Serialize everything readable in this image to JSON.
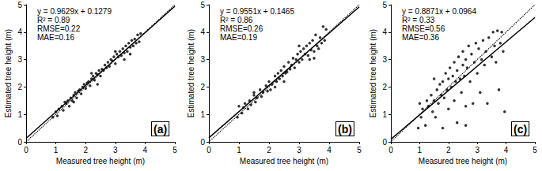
{
  "chart_data": [
    {
      "type": "scatter",
      "title": "(a)",
      "x_label": "Measured tree height (m)",
      "y_label": "Estimated tree height (m)",
      "annotations": [
        "y = 0.9629x + 0.1279",
        "R² = 0.89",
        "RMSE=0.22",
        "MAE=0.16"
      ],
      "xlim": [
        0,
        5
      ],
      "xticks": [
        0,
        1,
        2,
        3,
        4,
        5
      ],
      "ylim": [
        0,
        5
      ],
      "yticks": [
        0,
        1,
        2,
        3,
        4,
        5
      ],
      "grid": false,
      "series": [
        {
          "type": "scatter",
          "marker": "circle",
          "color": "#000000",
          "x": [
            0.9,
            1.0,
            1.05,
            1.1,
            1.2,
            1.25,
            1.3,
            1.35,
            1.4,
            1.45,
            1.5,
            1.55,
            1.6,
            1.65,
            1.7,
            1.75,
            1.8,
            1.85,
            1.9,
            1.95,
            2.0,
            2.05,
            2.1,
            2.15,
            2.2,
            2.25,
            2.3,
            2.35,
            2.4,
            2.45,
            2.5,
            2.55,
            2.6,
            2.65,
            2.7,
            2.75,
            2.8,
            2.85,
            2.9,
            2.95,
            3.0,
            3.05,
            3.1,
            3.15,
            3.2,
            3.25,
            3.3,
            3.35,
            3.4,
            3.45,
            3.5,
            3.55,
            3.6,
            3.65,
            3.7,
            3.75,
            3.8,
            3.85,
            3.5,
            2.4,
            1.6,
            3.0,
            2.2,
            3.3
          ],
          "values": [
            0.9,
            1.1,
            0.95,
            1.2,
            1.3,
            1.15,
            1.45,
            1.4,
            1.5,
            1.3,
            1.6,
            1.5,
            1.7,
            1.8,
            1.6,
            1.85,
            1.9,
            1.75,
            2.0,
            2.1,
            1.95,
            2.15,
            2.2,
            2.05,
            2.3,
            2.4,
            2.25,
            2.5,
            2.45,
            2.6,
            2.4,
            2.65,
            2.6,
            2.8,
            2.7,
            2.9,
            2.75,
            3.0,
            2.95,
            3.1,
            2.85,
            3.2,
            3.1,
            3.3,
            3.15,
            3.4,
            3.25,
            3.5,
            3.3,
            3.6,
            3.45,
            3.7,
            3.5,
            3.75,
            3.6,
            3.9,
            3.65,
            3.95,
            3.2,
            2.1,
            1.45,
            3.3,
            2.5,
            3.0
          ]
        },
        {
          "type": "line",
          "line_style": "solid",
          "color": "#000000",
          "x": [
            0,
            5
          ],
          "values": [
            0.1279,
            4.9424
          ]
        },
        {
          "type": "line",
          "line_style": "dotted",
          "color": "#000000",
          "x": [
            0,
            5
          ],
          "values": [
            0,
            5
          ]
        }
      ]
    },
    {
      "type": "scatter",
      "title": "(b)",
      "x_label": "Measured tree height (m)",
      "y_label": "Estimated tree height (m)",
      "annotations": [
        "y = 0.9551x + 0.1465",
        "R² = 0.86",
        "RMSE=0.26",
        "MAE=0.19"
      ],
      "xlim": [
        0,
        5
      ],
      "xticks": [
        0,
        1,
        2,
        3,
        4,
        5
      ],
      "ylim": [
        0,
        5
      ],
      "yticks": [
        0,
        1,
        2,
        3,
        4,
        5
      ],
      "grid": false,
      "series": [
        {
          "type": "scatter",
          "marker": "circle",
          "color": "#000000",
          "x": [
            0.95,
            1.0,
            1.1,
            1.15,
            1.2,
            1.3,
            1.35,
            1.4,
            1.5,
            1.55,
            1.6,
            1.7,
            1.75,
            1.8,
            1.9,
            1.95,
            2.0,
            2.05,
            2.1,
            2.2,
            2.25,
            2.3,
            2.35,
            2.4,
            2.45,
            2.5,
            2.55,
            2.6,
            2.65,
            2.7,
            2.75,
            2.8,
            2.85,
            2.9,
            2.95,
            3.0,
            3.05,
            3.1,
            3.15,
            3.2,
            3.25,
            3.3,
            3.35,
            3.4,
            3.45,
            3.5,
            3.55,
            3.6,
            3.65,
            3.7,
            3.75,
            3.8,
            3.85,
            3.9,
            3.5,
            2.5,
            1.5,
            3.0,
            2.2,
            3.35
          ],
          "values": [
            0.9,
            1.3,
            1.05,
            1.25,
            1.4,
            1.2,
            1.5,
            1.35,
            1.7,
            1.45,
            1.6,
            1.9,
            1.65,
            1.8,
            2.05,
            1.85,
            2.2,
            1.9,
            2.1,
            2.4,
            2.2,
            2.5,
            2.3,
            2.6,
            2.4,
            2.75,
            2.5,
            2.55,
            2.9,
            2.65,
            2.8,
            3.05,
            2.7,
            3.0,
            3.2,
            2.9,
            3.3,
            3.0,
            3.4,
            3.2,
            3.5,
            3.15,
            3.6,
            3.35,
            3.7,
            3.3,
            3.9,
            3.5,
            3.4,
            3.8,
            3.6,
            4.2,
            3.7,
            4.1,
            3.05,
            2.2,
            1.8,
            3.5,
            2.0,
            3.0
          ]
        },
        {
          "type": "line",
          "line_style": "solid",
          "color": "#000000",
          "x": [
            0,
            5
          ],
          "values": [
            0.1465,
            4.922
          ]
        },
        {
          "type": "line",
          "line_style": "dotted",
          "color": "#000000",
          "x": [
            0,
            5
          ],
          "values": [
            0,
            5
          ]
        }
      ]
    },
    {
      "type": "scatter",
      "title": "(c)",
      "x_label": "Measured tree height (m)",
      "y_label": "Estimated tree height (m)",
      "annotations": [
        "y = 0.8871x + 0.0964",
        "R² = 0.33",
        "RMSE=0.56",
        "MAE=0.36"
      ],
      "xlim": [
        0,
        5
      ],
      "xticks": [
        0,
        1,
        2,
        3,
        4,
        5
      ],
      "ylim": [
        0,
        5
      ],
      "yticks": [
        0,
        1,
        2,
        3,
        4,
        5
      ],
      "grid": false,
      "series": [
        {
          "type": "scatter",
          "marker": "circle",
          "color": "#000000",
          "x": [
            0.95,
            1.0,
            1.05,
            1.1,
            1.2,
            1.25,
            1.3,
            1.4,
            1.45,
            1.5,
            1.55,
            1.6,
            1.65,
            1.7,
            1.75,
            1.8,
            1.8,
            1.85,
            1.9,
            1.95,
            2.0,
            2.0,
            2.05,
            2.1,
            2.15,
            2.2,
            2.2,
            2.25,
            2.3,
            2.3,
            2.35,
            2.4,
            2.45,
            2.5,
            2.5,
            2.55,
            2.6,
            2.6,
            2.65,
            2.7,
            2.75,
            2.8,
            2.85,
            2.9,
            2.95,
            3.0,
            3.05,
            3.1,
            3.15,
            3.2,
            3.25,
            3.3,
            3.35,
            3.4,
            3.5,
            3.55,
            3.6,
            3.65,
            3.7,
            3.75,
            3.8,
            3.85,
            3.9,
            3.95,
            2.6,
            1.5
          ],
          "values": [
            0.5,
            1.4,
            0.9,
            1.2,
            0.6,
            1.5,
            1.3,
            1.7,
            1.1,
            1.5,
            0.9,
            1.9,
            1.4,
            2.1,
            1.7,
            0.5,
            2.2,
            1.6,
            2.5,
            1.9,
            2.3,
            1.2,
            2.7,
            2.0,
            2.4,
            1.5,
            2.9,
            2.2,
            0.7,
            2.6,
            3.1,
            2.3,
            1.8,
            2.8,
            3.3,
            2.4,
            1.3,
            3.0,
            2.7,
            3.5,
            2.2,
            3.2,
            1.4,
            2.9,
            3.6,
            2.5,
            3.4,
            1.8,
            3.0,
            3.7,
            2.8,
            3.3,
            1.4,
            3.8,
            3.1,
            4.0,
            3.5,
            2.9,
            4.05,
            1.9,
            3.6,
            4.0,
            3.3,
            1.1,
            0.6,
            2.3
          ]
        },
        {
          "type": "line",
          "line_style": "solid",
          "color": "#000000",
          "x": [
            0,
            5
          ],
          "values": [
            0.0964,
            4.5319
          ]
        },
        {
          "type": "line",
          "line_style": "dotted",
          "color": "#000000",
          "x": [
            0,
            5
          ],
          "values": [
            0,
            5
          ]
        }
      ]
    }
  ]
}
